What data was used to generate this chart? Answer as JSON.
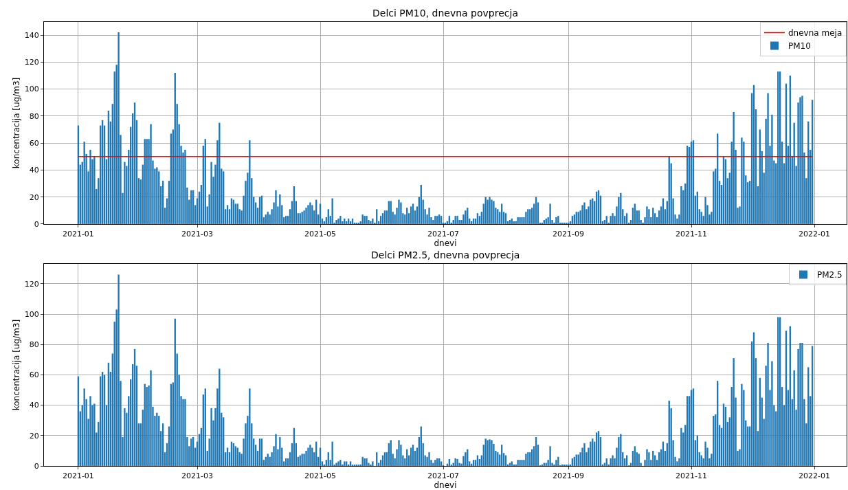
{
  "chart_data": [
    {
      "type": "bar",
      "title": "Delci PM10, dnevna povprecja",
      "xlabel": "dnevi",
      "ylabel": "koncentracija [ug/m3]",
      "x": [
        "2021-01-01",
        "2021-01-02",
        "2021-01-03",
        "2021-01-04",
        "2021-01-05",
        "2021-01-06",
        "2021-01-07",
        "2021-01-08",
        "2021-01-09",
        "2021-01-10",
        "2021-01-11",
        "2021-01-12",
        "2021-01-13",
        "2021-01-14",
        "2021-01-15",
        "2021-01-16",
        "2021-01-17",
        "2021-01-18",
        "2021-01-19",
        "2021-01-20",
        "2021-01-21",
        "2021-01-22",
        "2021-01-23",
        "2021-01-24",
        "2021-01-25",
        "2021-01-26",
        "2021-01-27",
        "2021-01-28",
        "2021-01-29",
        "2021-01-30",
        "2021-01-31",
        "2021-02-01",
        "2021-02-02",
        "2021-02-03",
        "2021-02-04",
        "2021-02-05",
        "2021-02-06",
        "2021-02-07",
        "2021-02-08",
        "2021-02-09",
        "2021-02-10",
        "2021-02-11",
        "2021-02-12",
        "2021-02-13",
        "2021-02-14",
        "2021-02-15",
        "2021-02-16",
        "2021-02-17",
        "2021-02-18",
        "2021-02-19",
        "2021-02-20",
        "2021-02-21",
        "2021-02-22",
        "2021-02-23",
        "2021-02-24",
        "2021-02-25",
        "2021-02-26",
        "2021-02-27",
        "2021-02-28",
        "2021-03-01",
        "2021-03-02",
        "2021-03-03",
        "2021-03-04",
        "2021-03-05",
        "2021-03-06",
        "2021-03-07",
        "2021-03-08",
        "2021-03-09",
        "2021-03-10",
        "2021-03-11",
        "2021-03-12",
        "2021-03-13",
        "2021-03-14",
        "2021-03-15",
        "2021-03-16",
        "2021-03-17",
        "2021-03-18",
        "2021-03-19",
        "2021-03-20",
        "2021-03-21",
        "2021-03-22",
        "2021-03-23",
        "2021-03-24",
        "2021-03-25",
        "2021-03-26",
        "2021-03-27",
        "2021-03-28",
        "2021-03-29",
        "2021-03-30",
        "2021-03-31",
        "2021-04-01",
        "2021-04-02",
        "2021-04-03",
        "2021-04-04",
        "2021-04-05",
        "2021-04-06",
        "2021-04-07",
        "2021-04-08",
        "2021-04-09",
        "2021-04-10",
        "2021-04-11",
        "2021-04-12",
        "2021-04-13",
        "2021-04-14",
        "2021-04-15",
        "2021-04-16",
        "2021-04-17",
        "2021-04-18",
        "2021-04-19",
        "2021-04-20",
        "2021-04-21",
        "2021-04-22",
        "2021-04-23",
        "2021-04-24",
        "2021-04-25",
        "2021-04-26",
        "2021-04-27",
        "2021-04-28",
        "2021-04-29",
        "2021-04-30",
        "2021-05-01",
        "2021-05-02",
        "2021-05-03",
        "2021-05-04",
        "2021-05-05",
        "2021-05-06",
        "2021-05-07",
        "2021-05-08",
        "2021-05-09",
        "2021-05-10",
        "2021-05-11",
        "2021-05-12",
        "2021-05-13",
        "2021-05-14",
        "2021-05-15",
        "2021-05-16",
        "2021-05-17",
        "2021-05-18",
        "2021-05-19",
        "2021-05-20",
        "2021-05-21",
        "2021-05-22",
        "2021-05-23",
        "2021-05-24",
        "2021-05-25",
        "2021-05-26",
        "2021-05-27",
        "2021-05-28",
        "2021-05-29",
        "2021-05-30",
        "2021-05-31",
        "2021-06-01",
        "2021-06-02",
        "2021-06-03",
        "2021-06-04",
        "2021-06-05",
        "2021-06-06",
        "2021-06-07",
        "2021-06-08",
        "2021-06-09",
        "2021-06-10",
        "2021-06-11",
        "2021-06-12",
        "2021-06-13",
        "2021-06-14",
        "2021-06-15",
        "2021-06-16",
        "2021-06-17",
        "2021-06-18",
        "2021-06-19",
        "2021-06-20",
        "2021-06-21",
        "2021-06-22",
        "2021-06-23",
        "2021-06-24",
        "2021-06-25",
        "2021-06-26",
        "2021-06-27",
        "2021-06-28",
        "2021-06-29",
        "2021-06-30",
        "2021-07-01",
        "2021-07-02",
        "2021-07-03",
        "2021-07-04",
        "2021-07-05",
        "2021-07-06",
        "2021-07-07",
        "2021-07-08",
        "2021-07-09",
        "2021-07-10",
        "2021-07-11",
        "2021-07-12",
        "2021-07-13",
        "2021-07-14",
        "2021-07-15",
        "2021-07-16",
        "2021-07-17",
        "2021-07-18",
        "2021-07-19",
        "2021-07-20",
        "2021-07-21",
        "2021-07-22",
        "2021-07-23",
        "2021-07-24",
        "2021-07-25",
        "2021-07-26",
        "2021-07-27",
        "2021-07-28",
        "2021-07-29",
        "2021-07-30",
        "2021-07-31",
        "2021-08-01",
        "2021-08-02",
        "2021-08-03",
        "2021-08-04",
        "2021-08-05",
        "2021-08-06",
        "2021-08-07",
        "2021-08-08",
        "2021-08-09",
        "2021-08-10",
        "2021-08-11",
        "2021-08-12",
        "2021-08-13",
        "2021-08-14",
        "2021-08-15",
        "2021-08-16",
        "2021-08-17",
        "2021-08-18",
        "2021-08-19",
        "2021-08-20",
        "2021-08-21",
        "2021-08-22",
        "2021-08-23",
        "2021-08-24",
        "2021-08-25",
        "2021-08-26",
        "2021-08-27",
        "2021-08-28",
        "2021-08-29",
        "2021-08-30",
        "2021-08-31",
        "2021-09-01",
        "2021-09-02",
        "2021-09-03",
        "2021-09-04",
        "2021-09-05",
        "2021-09-06",
        "2021-09-07",
        "2021-09-08",
        "2021-09-09",
        "2021-09-10",
        "2021-09-11",
        "2021-09-12",
        "2021-09-13",
        "2021-09-14",
        "2021-09-15",
        "2021-09-16",
        "2021-09-17",
        "2021-09-18",
        "2021-09-19",
        "2021-09-20",
        "2021-09-21",
        "2021-09-22",
        "2021-09-23",
        "2021-09-24",
        "2021-09-25",
        "2021-09-26",
        "2021-09-27",
        "2021-09-28",
        "2021-09-29",
        "2021-09-30",
        "2021-10-01",
        "2021-10-02",
        "2021-10-03",
        "2021-10-04",
        "2021-10-05",
        "2021-10-06",
        "2021-10-07",
        "2021-10-08",
        "2021-10-09",
        "2021-10-10",
        "2021-10-11",
        "2021-10-12",
        "2021-10-13",
        "2021-10-14",
        "2021-10-15",
        "2021-10-16",
        "2021-10-17",
        "2021-10-18",
        "2021-10-19",
        "2021-10-20",
        "2021-10-21",
        "2021-10-22",
        "2021-10-23",
        "2021-10-24",
        "2021-10-25",
        "2021-10-26",
        "2021-10-27",
        "2021-10-28",
        "2021-10-29",
        "2021-10-30",
        "2021-10-31",
        "2021-11-01",
        "2021-11-02",
        "2021-11-03",
        "2021-11-04",
        "2021-11-05",
        "2021-11-06",
        "2021-11-07",
        "2021-11-08",
        "2021-11-09",
        "2021-11-10",
        "2021-11-11",
        "2021-11-12",
        "2021-11-13",
        "2021-11-14",
        "2021-11-15",
        "2021-11-16",
        "2021-11-17",
        "2021-11-18",
        "2021-11-19",
        "2021-11-20",
        "2021-11-21",
        "2021-11-22",
        "2021-11-23",
        "2021-11-24",
        "2021-11-25",
        "2021-11-26",
        "2021-11-27",
        "2021-11-28",
        "2021-11-29",
        "2021-11-30",
        "2021-12-01",
        "2021-12-02",
        "2021-12-03",
        "2021-12-04",
        "2021-12-05",
        "2021-12-06",
        "2021-12-07",
        "2021-12-08",
        "2021-12-09",
        "2021-12-10",
        "2021-12-11",
        "2021-12-12",
        "2021-12-13",
        "2021-12-14",
        "2021-12-15",
        "2021-12-16",
        "2021-12-17",
        "2021-12-18",
        "2021-12-19",
        "2021-12-20",
        "2021-12-21",
        "2021-12-22",
        "2021-12-23",
        "2021-12-24",
        "2021-12-25",
        "2021-12-26",
        "2021-12-27",
        "2021-12-28",
        "2021-12-29",
        "2021-12-30",
        "2021-12-31"
      ],
      "series": [
        {
          "name": "PM10",
          "color": "#1f77b4",
          "values": [
            73,
            44,
            46,
            61,
            52,
            39,
            55,
            48,
            50,
            26,
            34,
            73,
            77,
            73,
            48,
            84,
            76,
            89,
            113,
            118,
            142,
            66,
            23,
            46,
            43,
            55,
            72,
            82,
            90,
            77,
            34,
            33,
            44,
            63,
            63,
            63,
            74,
            47,
            41,
            42,
            39,
            28,
            32,
            12,
            19,
            32,
            67,
            70,
            112,
            89,
            74,
            58,
            53,
            55,
            27,
            18,
            25,
            25,
            14,
            19,
            24,
            29,
            58,
            63,
            13,
            22,
            46,
            35,
            44,
            62,
            75,
            41,
            39,
            11,
            14,
            11,
            19,
            18,
            15,
            15,
            11,
            10,
            21,
            32,
            38,
            62,
            34,
            20,
            16,
            12,
            20,
            21,
            5,
            7,
            9,
            7,
            11,
            16,
            25,
            13,
            22,
            14,
            5,
            6,
            6,
            11,
            17,
            28,
            17,
            8,
            8,
            9,
            10,
            12,
            14,
            16,
            14,
            10,
            18,
            7,
            15,
            4,
            2,
            5,
            11,
            6,
            19,
            1,
            3,
            4,
            6,
            2,
            4,
            2,
            4,
            2,
            4,
            1,
            1,
            1,
            2,
            7,
            6,
            6,
            3,
            2,
            4,
            1,
            11,
            2,
            6,
            8,
            10,
            10,
            17,
            17,
            9,
            7,
            12,
            18,
            16,
            8,
            7,
            12,
            8,
            13,
            15,
            10,
            13,
            20,
            29,
            18,
            11,
            7,
            12,
            5,
            3,
            6,
            6,
            7,
            6,
            1,
            0.5,
            2,
            6,
            1,
            3,
            6,
            6,
            3,
            3,
            7,
            10,
            12,
            4,
            2,
            4,
            4,
            8,
            6,
            9,
            15,
            20,
            18,
            20,
            18,
            17,
            12,
            11,
            9,
            15,
            9,
            8,
            2,
            3,
            4,
            2,
            2,
            5,
            5,
            5,
            5,
            9,
            11,
            11,
            12,
            15,
            20,
            16,
            1,
            1,
            3,
            4,
            5,
            15,
            3,
            1,
            5,
            6,
            1,
            1,
            1,
            1,
            1,
            2,
            6,
            7,
            9,
            9,
            10,
            14,
            16,
            11,
            13,
            18,
            19,
            17,
            24,
            25,
            21,
            2,
            3,
            6,
            1,
            6,
            8,
            6,
            13,
            20,
            23,
            11,
            6,
            8,
            1,
            3,
            12,
            15,
            10,
            10,
            3,
            1,
            5,
            13,
            11,
            5,
            12,
            8,
            5,
            10,
            13,
            19,
            11,
            17,
            50,
            45,
            19,
            7,
            4,
            7,
            28,
            25,
            30,
            58,
            57,
            61,
            62,
            21,
            24,
            11,
            9,
            6,
            20,
            14,
            7,
            9,
            39,
            41,
            67,
            32,
            29,
            50,
            48,
            34,
            38,
            61,
            83,
            55,
            12,
            13,
            64,
            61,
            36,
            31,
            32,
            97,
            103,
            85,
            28,
            70,
            54,
            38,
            78,
            97,
            58,
            81,
            47,
            45,
            113,
            113,
            61,
            45,
            104,
            58,
            110,
            50,
            75,
            43,
            90,
            94,
            95,
            53,
            34,
            76,
            55,
            92
          ]
        }
      ],
      "ref_lines": [
        {
          "axis": "y",
          "value": 50,
          "label": "dnevna meja",
          "color": "#ff0000"
        }
      ],
      "xlim": [
        "2020-12-15",
        "2022-01-17"
      ],
      "xticks": [
        {
          "value": "2021-01-01",
          "label": "2021-01"
        },
        {
          "value": "2021-03-01",
          "label": "2021-03"
        },
        {
          "value": "2021-05-01",
          "label": "2021-05"
        },
        {
          "value": "2021-07-01",
          "label": "2021-07"
        },
        {
          "value": "2021-09-01",
          "label": "2021-09"
        },
        {
          "value": "2021-11-01",
          "label": "2021-11"
        },
        {
          "value": "2022-01-01",
          "label": "2022-01"
        }
      ],
      "ylim": [
        0,
        149.7
      ],
      "yticks": [
        0,
        20,
        40,
        60,
        80,
        100,
        120,
        140
      ],
      "grid": true,
      "legend": "top right"
    },
    {
      "type": "bar",
      "title": "Delci PM2.5, dnevna povprecja",
      "xlabel": "dnevi",
      "ylabel": "koncentracija [ug/m3]",
      "x": [
        "2021-01-01",
        "2021-01-02",
        "2021-01-03",
        "2021-01-04",
        "2021-01-05",
        "2021-01-06",
        "2021-01-07",
        "2021-01-08",
        "2021-01-09",
        "2021-01-10",
        "2021-01-11",
        "2021-01-12",
        "2021-01-13",
        "2021-01-14",
        "2021-01-15",
        "2021-01-16",
        "2021-01-17",
        "2021-01-18",
        "2021-01-19",
        "2021-01-20",
        "2021-01-21",
        "2021-01-22",
        "2021-01-23",
        "2021-01-24",
        "2021-01-25",
        "2021-01-26",
        "2021-01-27",
        "2021-01-28",
        "2021-01-29",
        "2021-01-30",
        "2021-01-31",
        "2021-02-01",
        "2021-02-02",
        "2021-02-03",
        "2021-02-04",
        "2021-02-05",
        "2021-02-06",
        "2021-02-07",
        "2021-02-08",
        "2021-02-09",
        "2021-02-10",
        "2021-02-11",
        "2021-02-12",
        "2021-02-13",
        "2021-02-14",
        "2021-02-15",
        "2021-02-16",
        "2021-02-17",
        "2021-02-18",
        "2021-02-19",
        "2021-02-20",
        "2021-02-21",
        "2021-02-22",
        "2021-02-23",
        "2021-02-24",
        "2021-02-25",
        "2021-02-26",
        "2021-02-27",
        "2021-02-28",
        "2021-03-01",
        "2021-03-02",
        "2021-03-03",
        "2021-03-04",
        "2021-03-05",
        "2021-03-06",
        "2021-03-07",
        "2021-03-08",
        "2021-03-09",
        "2021-03-10",
        "2021-03-11",
        "2021-03-12",
        "2021-03-13",
        "2021-03-14",
        "2021-03-15",
        "2021-03-16",
        "2021-03-17",
        "2021-03-18",
        "2021-03-19",
        "2021-03-20",
        "2021-03-21",
        "2021-03-22",
        "2021-03-23",
        "2021-03-24",
        "2021-03-25",
        "2021-03-26",
        "2021-03-27",
        "2021-03-28",
        "2021-03-29",
        "2021-03-30",
        "2021-03-31",
        "2021-04-01",
        "2021-04-02",
        "2021-04-03",
        "2021-04-04",
        "2021-04-05",
        "2021-04-06",
        "2021-04-07",
        "2021-04-08",
        "2021-04-09",
        "2021-04-10",
        "2021-04-11",
        "2021-04-12",
        "2021-04-13",
        "2021-04-14",
        "2021-04-15",
        "2021-04-16",
        "2021-04-17",
        "2021-04-18",
        "2021-04-19",
        "2021-04-20",
        "2021-04-21",
        "2021-04-22",
        "2021-04-23",
        "2021-04-24",
        "2021-04-25",
        "2021-04-26",
        "2021-04-27",
        "2021-04-28",
        "2021-04-29",
        "2021-04-30",
        "2021-05-01",
        "2021-05-02",
        "2021-05-03",
        "2021-05-04",
        "2021-05-05",
        "2021-05-06",
        "2021-05-07",
        "2021-05-08",
        "2021-05-09",
        "2021-05-10",
        "2021-05-11",
        "2021-05-12",
        "2021-05-13",
        "2021-05-14",
        "2021-05-15",
        "2021-05-16",
        "2021-05-17",
        "2021-05-18",
        "2021-05-19",
        "2021-05-20",
        "2021-05-21",
        "2021-05-22",
        "2021-05-23",
        "2021-05-24",
        "2021-05-25",
        "2021-05-26",
        "2021-05-27",
        "2021-05-28",
        "2021-05-29",
        "2021-05-30",
        "2021-05-31",
        "2021-06-01",
        "2021-06-02",
        "2021-06-03",
        "2021-06-04",
        "2021-06-05",
        "2021-06-06",
        "2021-06-07",
        "2021-06-08",
        "2021-06-09",
        "2021-06-10",
        "2021-06-11",
        "2021-06-12",
        "2021-06-13",
        "2021-06-14",
        "2021-06-15",
        "2021-06-16",
        "2021-06-17",
        "2021-06-18",
        "2021-06-19",
        "2021-06-20",
        "2021-06-21",
        "2021-06-22",
        "2021-06-23",
        "2021-06-24",
        "2021-06-25",
        "2021-06-26",
        "2021-06-27",
        "2021-06-28",
        "2021-06-29",
        "2021-06-30",
        "2021-07-01",
        "2021-07-02",
        "2021-07-03",
        "2021-07-04",
        "2021-07-05",
        "2021-07-06",
        "2021-07-07",
        "2021-07-08",
        "2021-07-09",
        "2021-07-10",
        "2021-07-11",
        "2021-07-12",
        "2021-07-13",
        "2021-07-14",
        "2021-07-15",
        "2021-07-16",
        "2021-07-17",
        "2021-07-18",
        "2021-07-19",
        "2021-07-20",
        "2021-07-21",
        "2021-07-22",
        "2021-07-23",
        "2021-07-24",
        "2021-07-25",
        "2021-07-26",
        "2021-07-27",
        "2021-07-28",
        "2021-07-29",
        "2021-07-30",
        "2021-07-31",
        "2021-08-01",
        "2021-08-02",
        "2021-08-03",
        "2021-08-04",
        "2021-08-05",
        "2021-08-06",
        "2021-08-07",
        "2021-08-08",
        "2021-08-09",
        "2021-08-10",
        "2021-08-11",
        "2021-08-12",
        "2021-08-13",
        "2021-08-14",
        "2021-08-15",
        "2021-08-16",
        "2021-08-17",
        "2021-08-18",
        "2021-08-19",
        "2021-08-20",
        "2021-08-21",
        "2021-08-22",
        "2021-08-23",
        "2021-08-24",
        "2021-08-25",
        "2021-08-26",
        "2021-08-27",
        "2021-08-28",
        "2021-08-29",
        "2021-08-30",
        "2021-08-31",
        "2021-09-01",
        "2021-09-02",
        "2021-09-03",
        "2021-09-04",
        "2021-09-05",
        "2021-09-06",
        "2021-09-07",
        "2021-09-08",
        "2021-09-09",
        "2021-09-10",
        "2021-09-11",
        "2021-09-12",
        "2021-09-13",
        "2021-09-14",
        "2021-09-15",
        "2021-09-16",
        "2021-09-17",
        "2021-09-18",
        "2021-09-19",
        "2021-09-20",
        "2021-09-21",
        "2021-09-22",
        "2021-09-23",
        "2021-09-24",
        "2021-09-25",
        "2021-09-26",
        "2021-09-27",
        "2021-09-28",
        "2021-09-29",
        "2021-09-30",
        "2021-10-01",
        "2021-10-02",
        "2021-10-03",
        "2021-10-04",
        "2021-10-05",
        "2021-10-06",
        "2021-10-07",
        "2021-10-08",
        "2021-10-09",
        "2021-10-10",
        "2021-10-11",
        "2021-10-12",
        "2021-10-13",
        "2021-10-14",
        "2021-10-15",
        "2021-10-16",
        "2021-10-17",
        "2021-10-18",
        "2021-10-19",
        "2021-10-20",
        "2021-10-21",
        "2021-10-22",
        "2021-10-23",
        "2021-10-24",
        "2021-10-25",
        "2021-10-26",
        "2021-10-27",
        "2021-10-28",
        "2021-10-29",
        "2021-10-30",
        "2021-10-31",
        "2021-11-01",
        "2021-11-02",
        "2021-11-03",
        "2021-11-04",
        "2021-11-05",
        "2021-11-06",
        "2021-11-07",
        "2021-11-08",
        "2021-11-09",
        "2021-11-10",
        "2021-11-11",
        "2021-11-12",
        "2021-11-13",
        "2021-11-14",
        "2021-11-15",
        "2021-11-16",
        "2021-11-17",
        "2021-11-18",
        "2021-11-19",
        "2021-11-20",
        "2021-11-21",
        "2021-11-22",
        "2021-11-23",
        "2021-11-24",
        "2021-11-25",
        "2021-11-26",
        "2021-11-27",
        "2021-11-28",
        "2021-11-29",
        "2021-11-30",
        "2021-12-01",
        "2021-12-02",
        "2021-12-03",
        "2021-12-04",
        "2021-12-05",
        "2021-12-06",
        "2021-12-07",
        "2021-12-08",
        "2021-12-09",
        "2021-12-10",
        "2021-12-11",
        "2021-12-12",
        "2021-12-13",
        "2021-12-14",
        "2021-12-15",
        "2021-12-16",
        "2021-12-17",
        "2021-12-18",
        "2021-12-19",
        "2021-12-20",
        "2021-12-21",
        "2021-12-22",
        "2021-12-23",
        "2021-12-24",
        "2021-12-25",
        "2021-12-26",
        "2021-12-27",
        "2021-12-28",
        "2021-12-29",
        "2021-12-30",
        "2021-12-31"
      ],
      "series": [
        {
          "name": "PM2.5",
          "color": "#1f77b4",
          "values": [
            59,
            36,
            40,
            51,
            44,
            31,
            46,
            40,
            41,
            22,
            29,
            59,
            62,
            60,
            40,
            68,
            62,
            74,
            95,
            103,
            126,
            56,
            19,
            38,
            35,
            46,
            57,
            67,
            77,
            66,
            28,
            28,
            37,
            54,
            52,
            53,
            63,
            39,
            33,
            35,
            33,
            23,
            28,
            9,
            15,
            26,
            54,
            55,
            97,
            74,
            60,
            46,
            44,
            44,
            19,
            13,
            18,
            19,
            12,
            16,
            21,
            25,
            47,
            51,
            10,
            18,
            38,
            30,
            38,
            51,
            64,
            35,
            32,
            9,
            12,
            9,
            16,
            15,
            13,
            12,
            9,
            8,
            18,
            28,
            33,
            51,
            28,
            18,
            14,
            10,
            18,
            18,
            4,
            6,
            8,
            6,
            9,
            13,
            21,
            11,
            19,
            12,
            3,
            5,
            5,
            9,
            15,
            25,
            15,
            6,
            7,
            8,
            8,
            10,
            12,
            14,
            12,
            9,
            16,
            6,
            12,
            3,
            1,
            4,
            9,
            4,
            16,
            0.5,
            2,
            3,
            4,
            1,
            3,
            3,
            1,
            3,
            0.5,
            0.5,
            1,
            0.5,
            1,
            6,
            5,
            5,
            2,
            1,
            3,
            0,
            9,
            2,
            4,
            7,
            9,
            9,
            15,
            17,
            8,
            5,
            11,
            17,
            14,
            7,
            5,
            11,
            7,
            12,
            14,
            10,
            12,
            19,
            26,
            15,
            7,
            6,
            9,
            4,
            2,
            4,
            5,
            5,
            3,
            0.3,
            0,
            1.5,
            4.5,
            0.5,
            2,
            5,
            4.5,
            2,
            1.5,
            6.5,
            9,
            11,
            3,
            1.5,
            4,
            4,
            7,
            4.5,
            7,
            14,
            18,
            17,
            17.5,
            17,
            14.5,
            10,
            9,
            7.5,
            14,
            8.5,
            7,
            1,
            2,
            3,
            1,
            1,
            4,
            4,
            4,
            4,
            8,
            9,
            9,
            11,
            13,
            19,
            14,
            0.3,
            1,
            2,
            2,
            4,
            13,
            2,
            1,
            4,
            6,
            0.3,
            1,
            0.5,
            0.5,
            0.5,
            1,
            5,
            6,
            7.5,
            7.5,
            9,
            12,
            15,
            9,
            12,
            16,
            18,
            16,
            22,
            23,
            19,
            1,
            2,
            5,
            1,
            5,
            7,
            5,
            12,
            19,
            21,
            9,
            5,
            7,
            0.3,
            2,
            10,
            13,
            9,
            8,
            2,
            0,
            4,
            11,
            9,
            4,
            10,
            7,
            4,
            9,
            11,
            16,
            10,
            15,
            43,
            38,
            17,
            6,
            3,
            5,
            25,
            22,
            27,
            46,
            46,
            50,
            51,
            17,
            20,
            9,
            7,
            5,
            16,
            12,
            5,
            8,
            33,
            34,
            56,
            27,
            25,
            41,
            39,
            29,
            32,
            52,
            71,
            45,
            10,
            11,
            54,
            50,
            30,
            26,
            26,
            82,
            88,
            71,
            23,
            58,
            45,
            31,
            66,
            81,
            50,
            69,
            40,
            36,
            98,
            98,
            52,
            40,
            89,
            50,
            92,
            44,
            63,
            37,
            77,
            81,
            81,
            44,
            28,
            65,
            46,
            79
          ]
        }
      ],
      "xlim": [
        "2020-12-15",
        "2022-01-17"
      ],
      "xticks": [
        {
          "value": "2021-01-01",
          "label": "2021-01"
        },
        {
          "value": "2021-03-01",
          "label": "2021-03"
        },
        {
          "value": "2021-05-01",
          "label": "2021-05"
        },
        {
          "value": "2021-07-01",
          "label": "2021-07"
        },
        {
          "value": "2021-09-01",
          "label": "2021-09"
        },
        {
          "value": "2021-11-01",
          "label": "2021-11"
        },
        {
          "value": "2022-01-01",
          "label": "2022-01"
        }
      ],
      "ylim": [
        0,
        133
      ],
      "yticks": [
        0,
        20,
        40,
        60,
        80,
        100,
        120
      ],
      "grid": true,
      "legend": "top right"
    }
  ]
}
